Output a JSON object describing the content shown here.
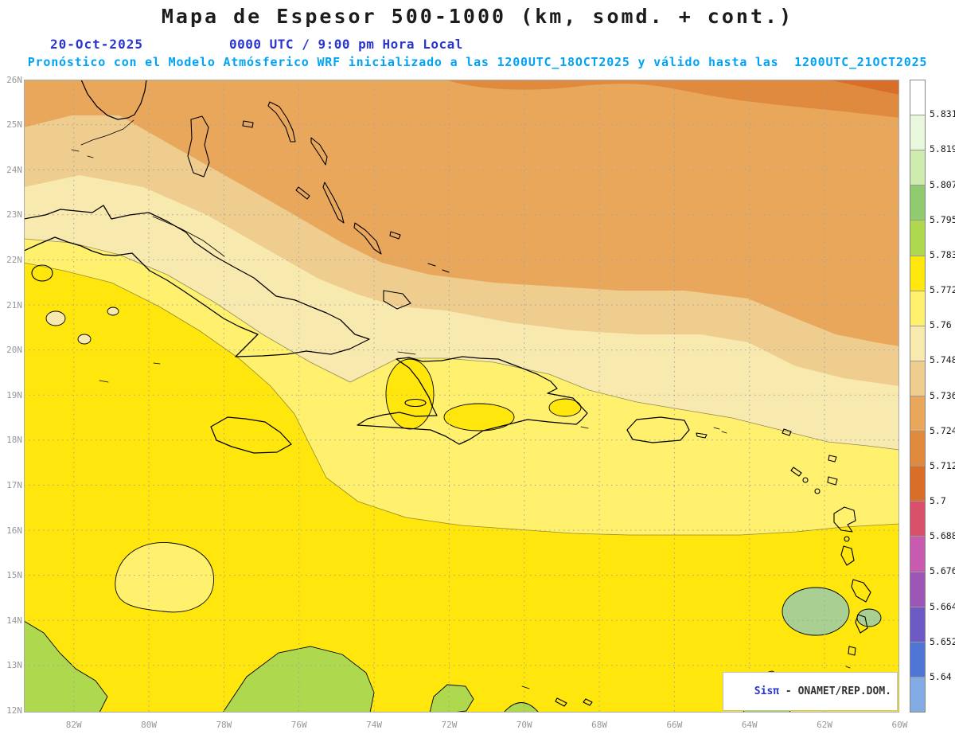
{
  "title": "Mapa de Espesor 500-1000 (km, somd. + cont.)",
  "header": {
    "date": "20-Oct-2025",
    "local_time": "0000 UTC / 9:00 pm Hora Local",
    "forecast_line": "Pronóstico con el Modelo Atmósferico WRF inicializado a las 1200UTC_18OCT2025 y válido hasta las  1200UTC_21OCT2025"
  },
  "credit": {
    "brand": "Sisπ",
    "org": " - ONAMET/REP.DOM."
  },
  "axes": {
    "lat_labels": [
      "26N",
      "25N",
      "24N",
      "23N",
      "22N",
      "21N",
      "20N",
      "19N",
      "18N",
      "17N",
      "16N",
      "15N",
      "14N",
      "13N",
      "12N"
    ],
    "lon_labels": [
      "82W",
      "80W",
      "78W",
      "76W",
      "74W",
      "72W",
      "70W",
      "68W",
      "66W",
      "64W",
      "62W",
      "60W"
    ]
  },
  "colorbar": {
    "tick_labels": [
      "5.831",
      "5.819",
      "5.807",
      "5.795",
      "5.783",
      "5.772",
      "5.76",
      "5.748",
      "5.736",
      "5.724",
      "5.712",
      "5.7",
      "5.688",
      "5.676",
      "5.664",
      "5.652",
      "5.64"
    ],
    "segment_colors": [
      "#ffffff",
      "#e9f7dd",
      "#cdecae",
      "#90cb70",
      "#aed84e",
      "#ffe60d",
      "#fff06e",
      "#f8e9ae",
      "#eecd8e",
      "#e9a75c",
      "#e08a3e",
      "#d96e28",
      "#d9506a",
      "#c85ab0",
      "#9c57b6",
      "#6e5ac4",
      "#4f76d4",
      "#83abe4"
    ]
  },
  "map": {
    "extra_colors": {
      "gray_green": "#a9cf92"
    },
    "grid_color": "#a3a3a3",
    "coast_color": "#000000",
    "header_colors": {
      "title": "#1c1c1c",
      "date_blue": "#2a35cf",
      "forecast_cyan": "#00a3f5",
      "axis_gray": "#979797",
      "credit_dark": "#333333"
    }
  }
}
